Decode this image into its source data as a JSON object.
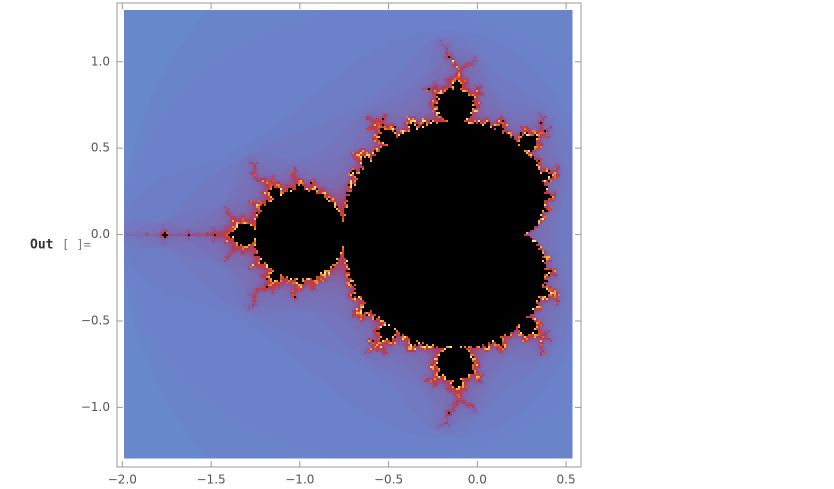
{
  "out_label": {
    "prompt": "Out",
    "suffix": "[ ]="
  },
  "chart_data": {
    "type": "mandelbrot",
    "xlim": [
      -2.03,
      0.584
    ],
    "ylim": [
      -1.345,
      1.34
    ],
    "xticks": [
      {
        "value": -2,
        "label": "−2.0"
      },
      {
        "value": -1.5,
        "label": "−1.5"
      },
      {
        "value": -1,
        "label": "−1.0"
      },
      {
        "value": -0.5,
        "label": "−0.5"
      },
      {
        "value": 0,
        "label": "0.0"
      },
      0.5
    ],
    "yticks": [
      {
        "value": -1,
        "label": "−1.0"
      },
      {
        "value": -0.5,
        "label": "−0.5"
      },
      {
        "value": 0,
        "label": "0.0"
      },
      0.5,
      {
        "value": 1,
        "label": "1.0"
      }
    ]
  }
}
